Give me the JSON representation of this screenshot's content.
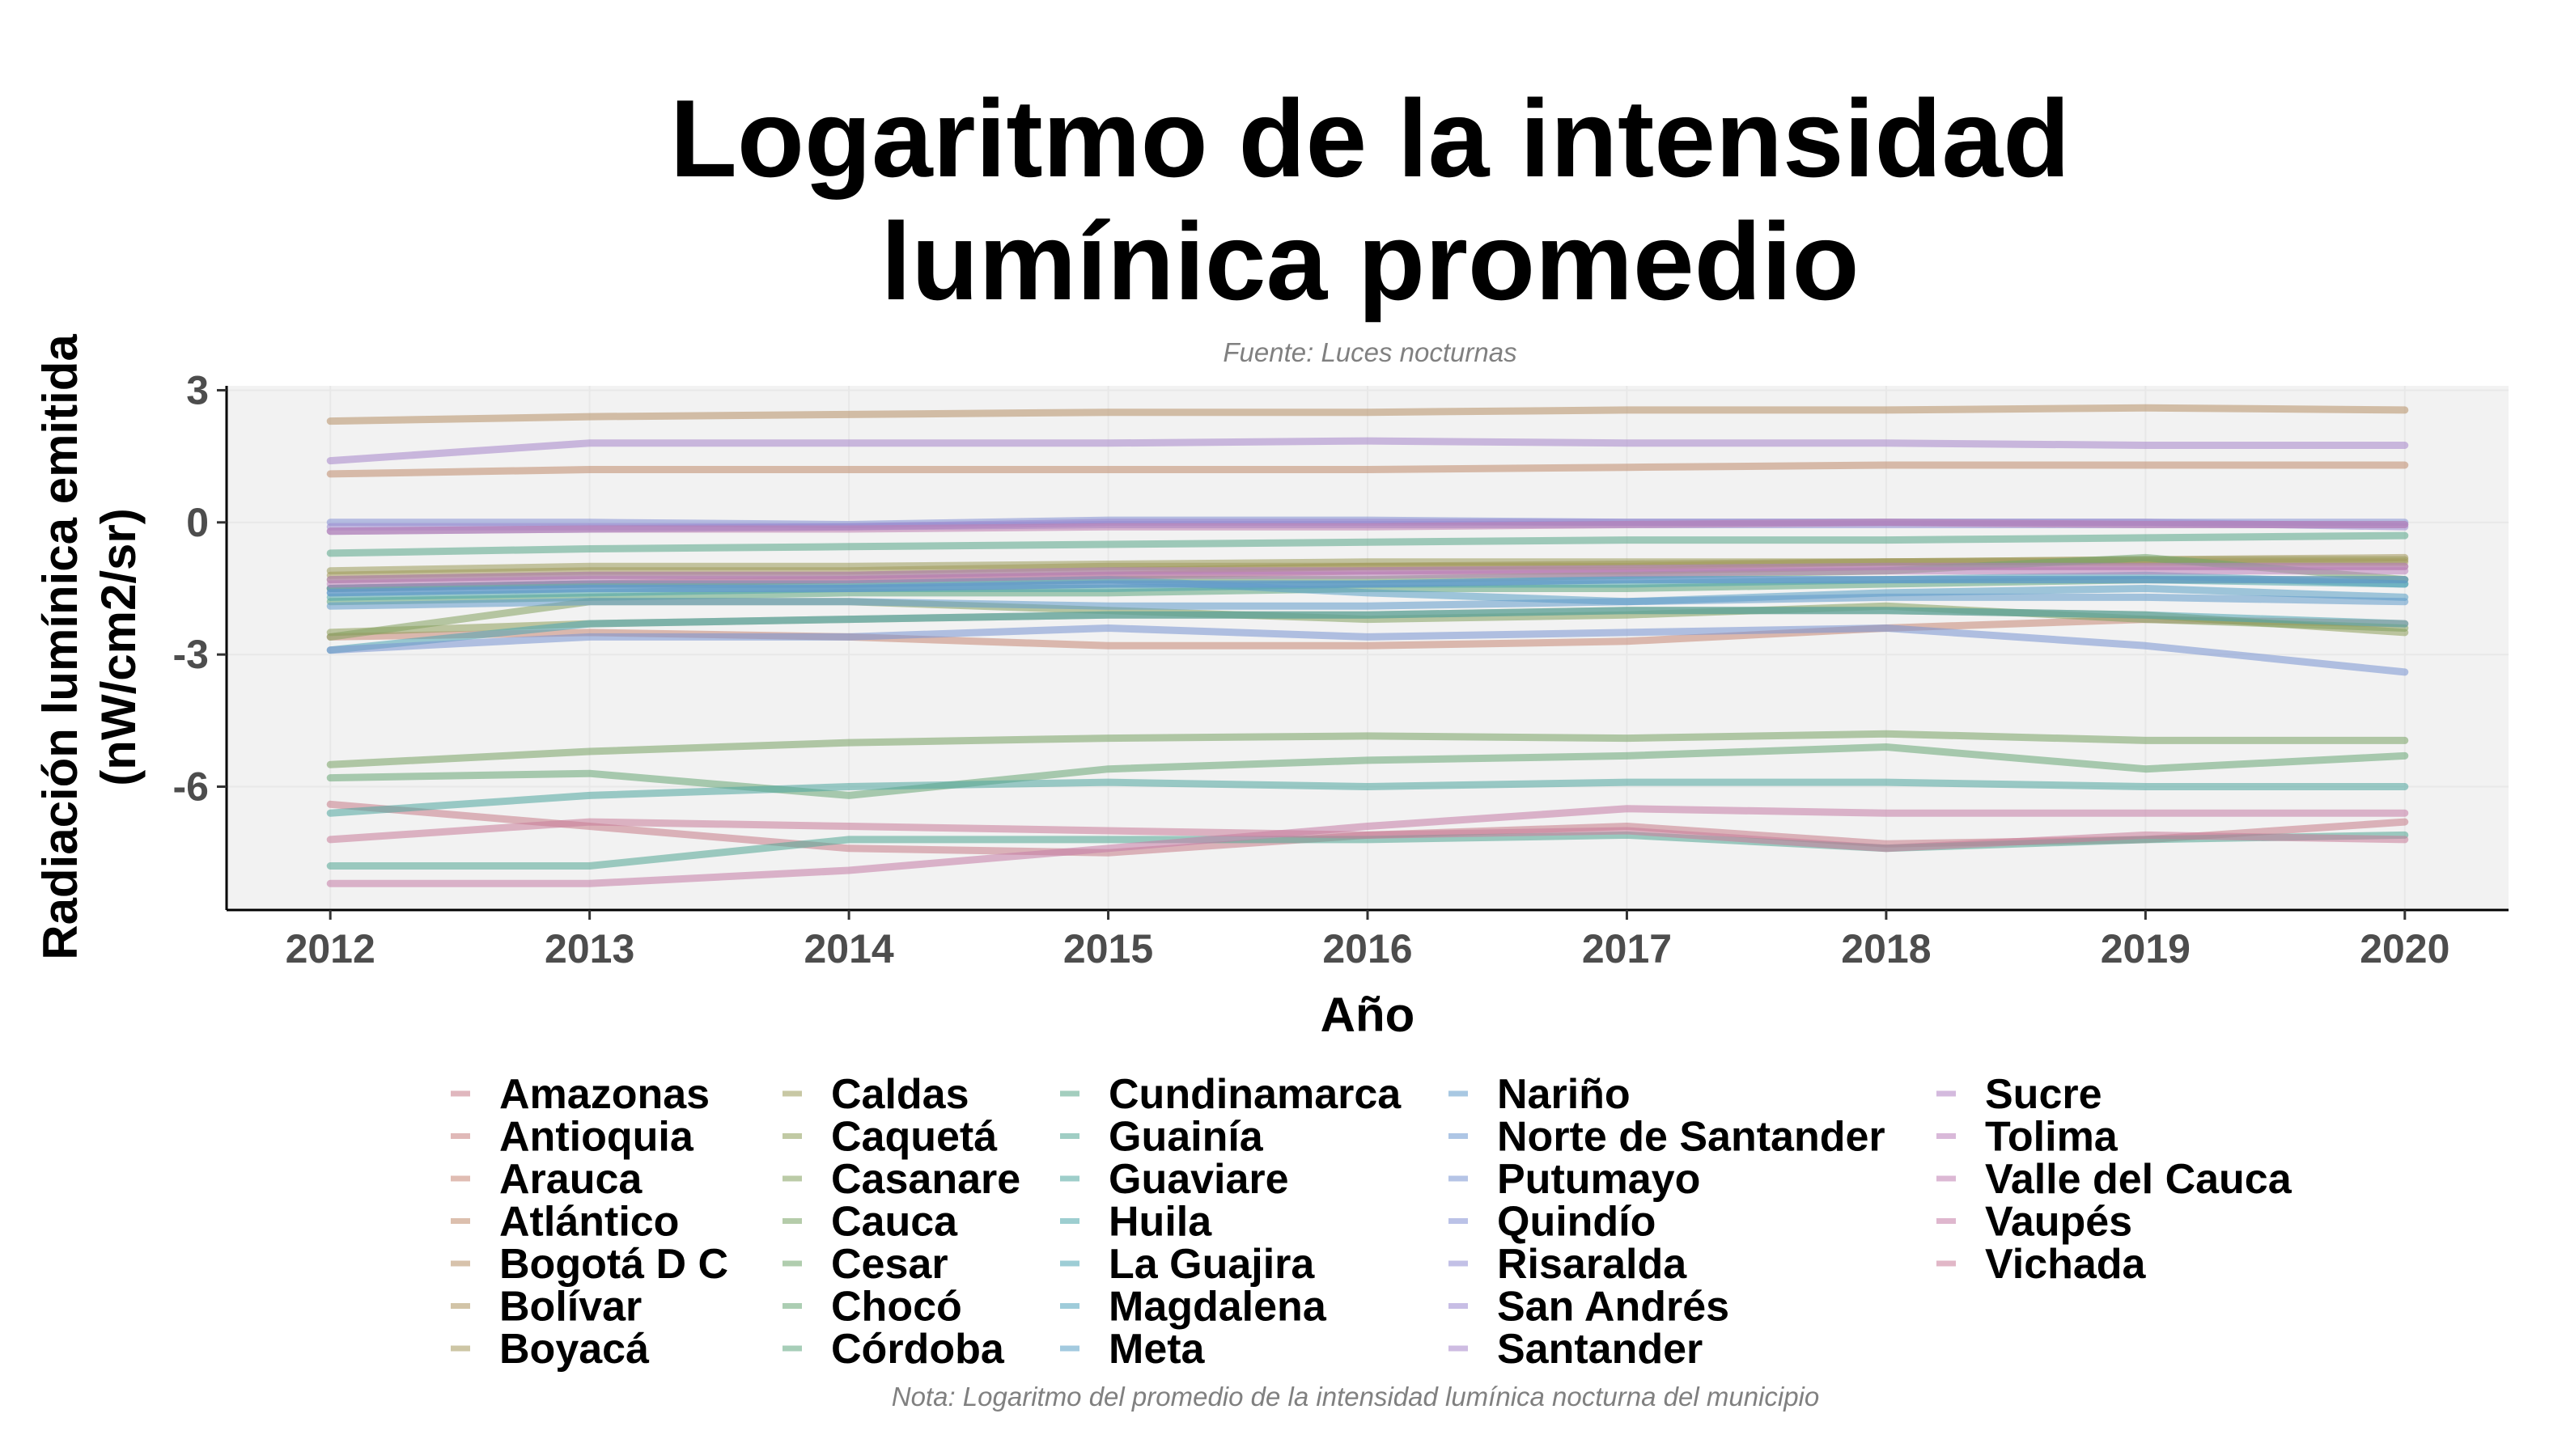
{
  "chart_data": {
    "type": "line",
    "title_lines": [
      "Logaritmo de la intensidad",
      "lumínica promedio"
    ],
    "subtitle": "Fuente: Luces nocturnas",
    "caption": "Nota: Logaritmo del promedio de la intensidad lumínica nocturna del municipio",
    "xlabel": "Año",
    "ylabel_lines": [
      "Radiación lumínica emitida",
      "(nW/cm2/sr)"
    ],
    "x": [
      2012,
      2013,
      2014,
      2015,
      2016,
      2017,
      2018,
      2019,
      2020
    ],
    "x_ticks": [
      "2012",
      "2013",
      "2014",
      "2015",
      "2016",
      "2017",
      "2018",
      "2019",
      "2020"
    ],
    "y_ticks": [
      3,
      0,
      -3,
      -6
    ],
    "y_tick_labels": [
      "3",
      "0",
      "-3",
      "-6"
    ],
    "ylim": [
      -8.8,
      3.1
    ],
    "xlim": [
      2011.6,
      2020.4
    ],
    "grid": true,
    "legend_position": "bottom",
    "line_opacity": 0.55,
    "series": [
      {
        "name": "Amazonas",
        "color": "#c67b88",
        "values": [
          -6.4,
          -6.9,
          -7.4,
          -7.5,
          -7.1,
          -6.9,
          -7.3,
          -7.2,
          -6.8
        ]
      },
      {
        "name": "Antioquia",
        "color": "#c7807e",
        "values": [
          -1.5,
          -1.4,
          -1.3,
          -1.2,
          -1.1,
          -1.1,
          -1.0,
          -1.0,
          -1.0
        ]
      },
      {
        "name": "Arauca",
        "color": "#c68674",
        "values": [
          -2.6,
          -2.5,
          -2.6,
          -2.8,
          -2.8,
          -2.7,
          -2.4,
          -2.2,
          -2.3
        ]
      },
      {
        "name": "Atlántico",
        "color": "#bf8a6c",
        "values": [
          1.1,
          1.2,
          1.2,
          1.2,
          1.2,
          1.25,
          1.3,
          1.3,
          1.3
        ]
      },
      {
        "name": "Bogotá D C",
        "color": "#b78f66",
        "values": [
          2.3,
          2.4,
          2.45,
          2.5,
          2.5,
          2.55,
          2.55,
          2.6,
          2.55
        ]
      },
      {
        "name": "Bolívar",
        "color": "#ad945f",
        "values": [
          -1.3,
          -1.2,
          -1.2,
          -1.1,
          -1.0,
          -1.0,
          -0.9,
          -0.9,
          -0.9
        ]
      },
      {
        "name": "Boyacá",
        "color": "#a4985b",
        "values": [
          -1.2,
          -1.1,
          -1.1,
          -1.0,
          -1.0,
          -0.95,
          -0.9,
          -0.85,
          -0.8
        ]
      },
      {
        "name": "Caldas",
        "color": "#9a9b59",
        "values": [
          -1.1,
          -1.0,
          -1.0,
          -0.95,
          -0.9,
          -0.9,
          -0.9,
          -0.85,
          -0.85
        ]
      },
      {
        "name": "Caquetá",
        "color": "#8e9e5a",
        "values": [
          -2.5,
          -2.3,
          -2.2,
          -2.1,
          -2.1,
          -2.0,
          -2.0,
          -2.1,
          -2.5
        ]
      },
      {
        "name": "Casanare",
        "color": "#83a15e",
        "values": [
          -2.6,
          -1.8,
          -1.8,
          -2.0,
          -2.2,
          -2.1,
          -1.9,
          -2.2,
          -2.4
        ]
      },
      {
        "name": "Cauca",
        "color": "#79a264",
        "values": [
          -5.5,
          -5.2,
          -5.0,
          -4.9,
          -4.85,
          -4.9,
          -4.8,
          -4.95,
          -4.95
        ]
      },
      {
        "name": "Cesar",
        "color": "#6fa46c",
        "values": [
          -1.5,
          -1.4,
          -1.4,
          -1.3,
          -1.3,
          -1.2,
          -1.1,
          -0.8,
          -1.3
        ]
      },
      {
        "name": "Chocó",
        "color": "#67a574",
        "values": [
          -5.8,
          -5.7,
          -6.2,
          -5.6,
          -5.4,
          -5.3,
          -5.1,
          -5.6,
          -5.3
        ]
      },
      {
        "name": "Córdoba",
        "color": "#5fa67e",
        "values": [
          -1.8,
          -1.7,
          -1.6,
          -1.6,
          -1.5,
          -1.5,
          -1.4,
          -1.3,
          -1.3
        ]
      },
      {
        "name": "Cundinamarca",
        "color": "#58a689",
        "values": [
          -0.7,
          -0.6,
          -0.55,
          -0.5,
          -0.45,
          -0.4,
          -0.4,
          -0.35,
          -0.3
        ]
      },
      {
        "name": "Guainía",
        "color": "#52a694",
        "values": [
          -7.8,
          -7.8,
          -7.2,
          -7.2,
          -7.2,
          -7.1,
          -7.4,
          -7.2,
          -7.1
        ]
      },
      {
        "name": "Guaviare",
        "color": "#4ea69f",
        "values": [
          -6.6,
          -6.2,
          -6.0,
          -5.9,
          -6.0,
          -5.9,
          -5.9,
          -6.0,
          -6.0
        ]
      },
      {
        "name": "Huila",
        "color": "#4ca5a9",
        "values": [
          -1.7,
          -1.6,
          -1.5,
          -1.5,
          -1.4,
          -1.4,
          -1.3,
          -1.3,
          -1.4
        ]
      },
      {
        "name": "La Guajira",
        "color": "#4da4b3",
        "values": [
          -2.9,
          -2.3,
          -2.2,
          -2.1,
          -2.1,
          -2.0,
          -2.0,
          -2.1,
          -2.3
        ]
      },
      {
        "name": "Magdalena",
        "color": "#51a2bc",
        "values": [
          -1.6,
          -1.5,
          -1.5,
          -1.4,
          -1.4,
          -1.3,
          -1.3,
          -1.2,
          -1.4
        ]
      },
      {
        "name": "Meta",
        "color": "#589fc4",
        "values": [
          -1.5,
          -1.4,
          -1.4,
          -1.3,
          -1.6,
          -1.8,
          -1.6,
          -1.5,
          -1.7
        ]
      },
      {
        "name": "Nariño",
        "color": "#619bca",
        "values": [
          -1.9,
          -1.8,
          -1.8,
          -1.9,
          -1.9,
          -1.8,
          -1.7,
          -1.7,
          -1.8
        ]
      },
      {
        "name": "Norte de Santander",
        "color": "#6c98cf",
        "values": [
          -1.6,
          -1.5,
          -1.5,
          -1.4,
          -1.4,
          -1.3,
          -1.3,
          -1.3,
          -1.3
        ]
      },
      {
        "name": "Putumayo",
        "color": "#7894d2",
        "values": [
          -2.9,
          -2.6,
          -2.6,
          -2.4,
          -2.6,
          -2.5,
          -2.4,
          -2.8,
          -3.4
        ]
      },
      {
        "name": "Quindío",
        "color": "#8490d3",
        "values": [
          0.0,
          0.0,
          -0.05,
          0.05,
          0.05,
          0.0,
          0.0,
          0.0,
          0.0
        ]
      },
      {
        "name": "Risaralda",
        "color": "#908cd2",
        "values": [
          -0.2,
          -0.15,
          -0.1,
          -0.05,
          -0.05,
          -0.05,
          -0.05,
          -0.05,
          -0.05
        ]
      },
      {
        "name": "San Andrés",
        "color": "#9b88cf",
        "values": [
          -0.1,
          -0.1,
          -0.1,
          0.0,
          0.0,
          0.0,
          0.0,
          0.0,
          -0.1
        ]
      },
      {
        "name": "Santander",
        "color": "#a685ca",
        "values": [
          1.4,
          1.8,
          1.8,
          1.8,
          1.85,
          1.8,
          1.8,
          1.75,
          1.75
        ]
      },
      {
        "name": "Sucre",
        "color": "#b082c3",
        "values": [
          -1.3,
          -1.2,
          -1.2,
          -1.1,
          -1.1,
          -1.05,
          -1.0,
          -1.0,
          -1.0
        ]
      },
      {
        "name": "Tolima",
        "color": "#b980ba",
        "values": [
          -1.4,
          -1.3,
          -1.3,
          -1.2,
          -1.2,
          -1.15,
          -1.1,
          -1.1,
          -1.1
        ]
      },
      {
        "name": "Valle del Cauca",
        "color": "#c07eb0",
        "values": [
          -0.2,
          -0.15,
          -0.15,
          -0.1,
          -0.1,
          -0.05,
          0.0,
          -0.05,
          -0.05
        ]
      },
      {
        "name": "Vaupés",
        "color": "#c57ca5",
        "values": [
          -8.2,
          -8.2,
          -7.9,
          -7.4,
          -6.9,
          -6.5,
          -6.6,
          -6.6,
          -6.6
        ]
      },
      {
        "name": "Vichada",
        "color": "#c87b99",
        "values": [
          -7.2,
          -6.8,
          -6.9,
          -7.0,
          -7.1,
          -7.0,
          -7.4,
          -7.1,
          -7.2
        ]
      }
    ]
  }
}
